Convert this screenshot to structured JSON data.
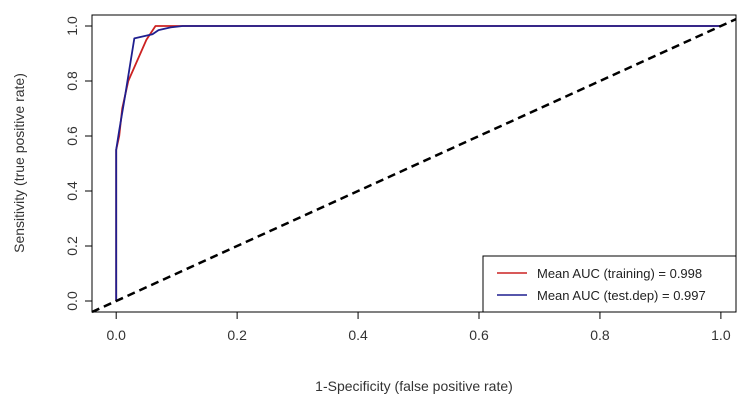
{
  "chart_data": {
    "type": "line",
    "title": "",
    "xlabel": "1-Specificity (false positive rate)",
    "ylabel": "Sensitivity (true positive rate)",
    "xlim": [
      -0.04,
      1.025
    ],
    "ylim": [
      -0.04,
      1.04
    ],
    "x_ticks": [
      0.0,
      0.2,
      0.4,
      0.6,
      0.8,
      1.0
    ],
    "x_tick_labels": [
      "0.0",
      "0.2",
      "0.4",
      "0.6",
      "0.8",
      "1.0"
    ],
    "y_ticks": [
      0.0,
      0.2,
      0.4,
      0.6,
      0.8,
      1.0
    ],
    "y_tick_labels": [
      "0.0",
      "0.2",
      "0.4",
      "0.6",
      "0.8",
      "1.0"
    ],
    "grid": false,
    "legend_position": "bottom-right",
    "series": [
      {
        "name": "Mean AUC (training) = 0.998",
        "color": "#cc2222",
        "style": "solid",
        "x": [
          0.0,
          0.0,
          0.0,
          0.005,
          0.01,
          0.02,
          0.03,
          0.05,
          0.065,
          0.08,
          0.1,
          0.12,
          1.0
        ],
        "y": [
          0.0,
          0.5,
          0.55,
          0.6,
          0.7,
          0.8,
          0.85,
          0.95,
          1.0,
          1.0,
          1.0,
          1.0,
          1.0
        ]
      },
      {
        "name": "Mean AUC (test.dep) = 0.997",
        "color": "#1f1f8f",
        "style": "solid",
        "x": [
          0.0,
          0.0,
          0.0,
          0.005,
          0.015,
          0.03,
          0.06,
          0.07,
          0.09,
          0.11,
          0.13,
          1.0
        ],
        "y": [
          0.0,
          0.47,
          0.55,
          0.62,
          0.75,
          0.955,
          0.97,
          0.985,
          0.995,
          1.0,
          1.0,
          1.0
        ]
      },
      {
        "name": "",
        "color": "#000000",
        "style": "dashed",
        "x": [
          -0.04,
          1.025
        ],
        "y": [
          -0.04,
          1.025
        ]
      }
    ]
  }
}
